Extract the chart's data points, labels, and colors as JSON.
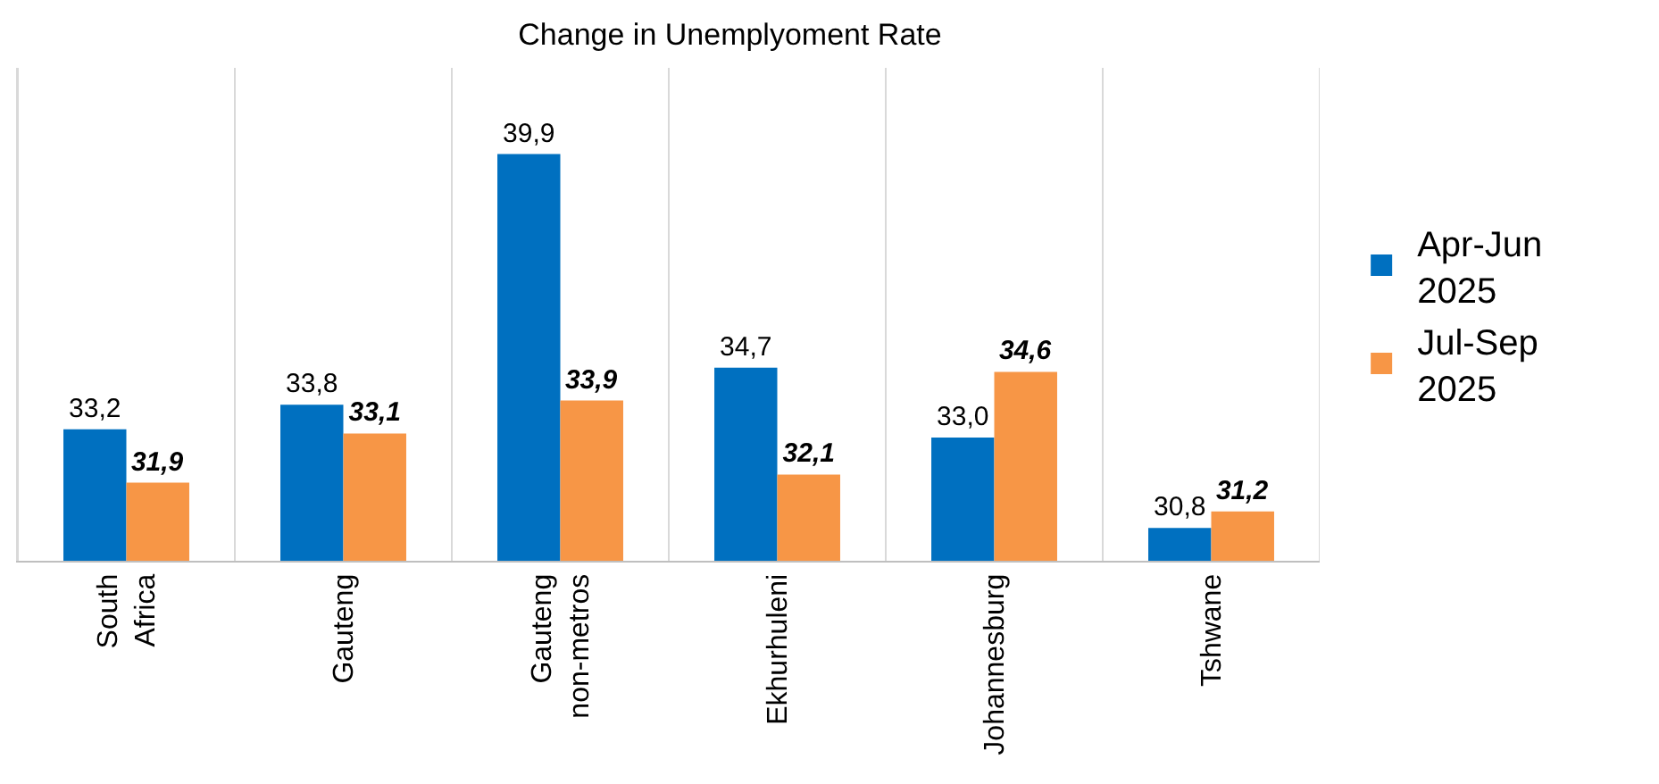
{
  "chart_data": {
    "type": "bar",
    "title": "Change in Unemplyoment Rate",
    "categories": [
      "South Africa",
      "Gauteng",
      "Gauteng non-metros",
      "Ekhurhuleni",
      "Johannesburg",
      "Tshwane"
    ],
    "series": [
      {
        "name": "Apr-Jun 2025",
        "color": "#0070c0",
        "values": [
          33.2,
          33.8,
          39.9,
          34.7,
          33.0,
          30.8
        ],
        "value_labels": [
          "33,2",
          "33,8",
          "39,9",
          "34,7",
          "33,0",
          "30,8"
        ]
      },
      {
        "name": "Jul-Sep 2025",
        "color": "#f79646",
        "values": [
          31.9,
          33.1,
          33.9,
          32.1,
          34.6,
          31.2
        ],
        "value_labels": [
          "31,9",
          "33,1",
          "33,9",
          "32,1",
          "34,6",
          "31,2"
        ]
      }
    ],
    "ylim": [
      30,
      42
    ],
    "tick_labels": "x",
    "grid": "x",
    "legend": "right"
  }
}
